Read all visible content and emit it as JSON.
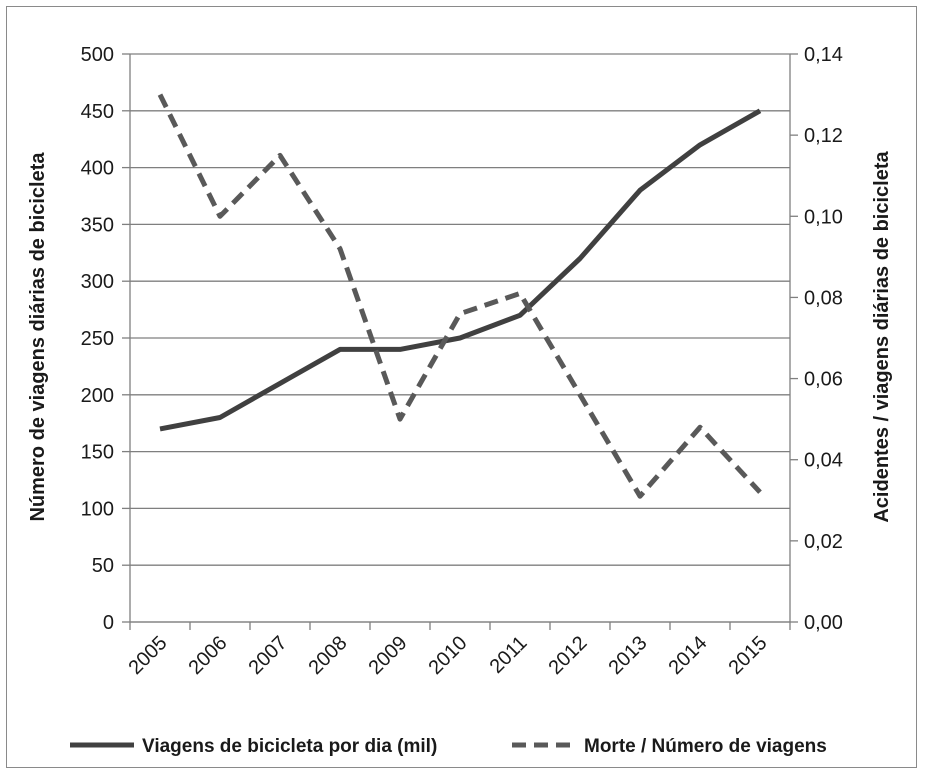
{
  "chart_data": {
    "type": "line",
    "categories": [
      "2005",
      "2006",
      "2007",
      "2008",
      "2009",
      "2010",
      "2011",
      "2012",
      "2013",
      "2014",
      "2015"
    ],
    "series": [
      {
        "name": "Viagens de bicicleta por dia (mil)",
        "axis": "left",
        "style": "solid",
        "color": "#404040",
        "values": [
          170,
          180,
          210,
          240,
          240,
          250,
          270,
          320,
          380,
          420,
          450
        ]
      },
      {
        "name": "Morte / Número de viagens",
        "axis": "right",
        "style": "dashed",
        "color": "#595959",
        "values": [
          0.13,
          0.1,
          0.115,
          0.092,
          0.05,
          0.076,
          0.081,
          0.056,
          0.031,
          0.048,
          0.032
        ]
      }
    ],
    "ylabel": "Número de viagens diárias de bicicleta",
    "y2label": "Acidentes / viagens diárias de bicicleta",
    "ylim": [
      0,
      500
    ],
    "y2lim": [
      0,
      0.14
    ],
    "yticks": [
      "0",
      "50",
      "100",
      "150",
      "200",
      "250",
      "300",
      "350",
      "400",
      "450",
      "500"
    ],
    "y2ticks": [
      "0,00",
      "0,02",
      "0,04",
      "0,06",
      "0,08",
      "0,10",
      "0,12",
      "0,14"
    ],
    "grid": true,
    "legend_position": "bottom"
  }
}
